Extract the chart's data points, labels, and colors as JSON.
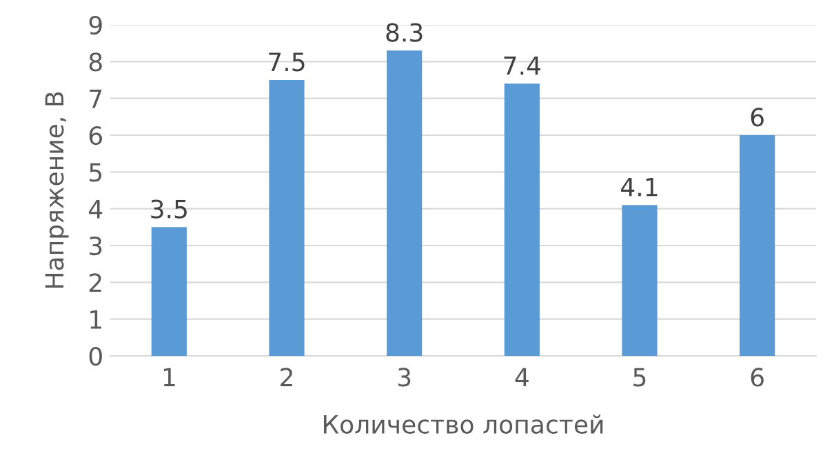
{
  "chart_data": {
    "type": "bar",
    "xlabel": "Количество лопастей",
    "ylabel": "Напряжение, В",
    "categories": [
      "1",
      "2",
      "3",
      "4",
      "5",
      "6"
    ],
    "values": [
      3.5,
      7.5,
      8.3,
      7.4,
      4.1,
      6
    ],
    "color": "#5b9bd5",
    "ylim": [
      0,
      9
    ],
    "yticks": [
      0,
      1,
      2,
      3,
      4,
      5,
      6,
      7,
      8,
      9
    ],
    "grid": "y",
    "data_labels": true
  }
}
